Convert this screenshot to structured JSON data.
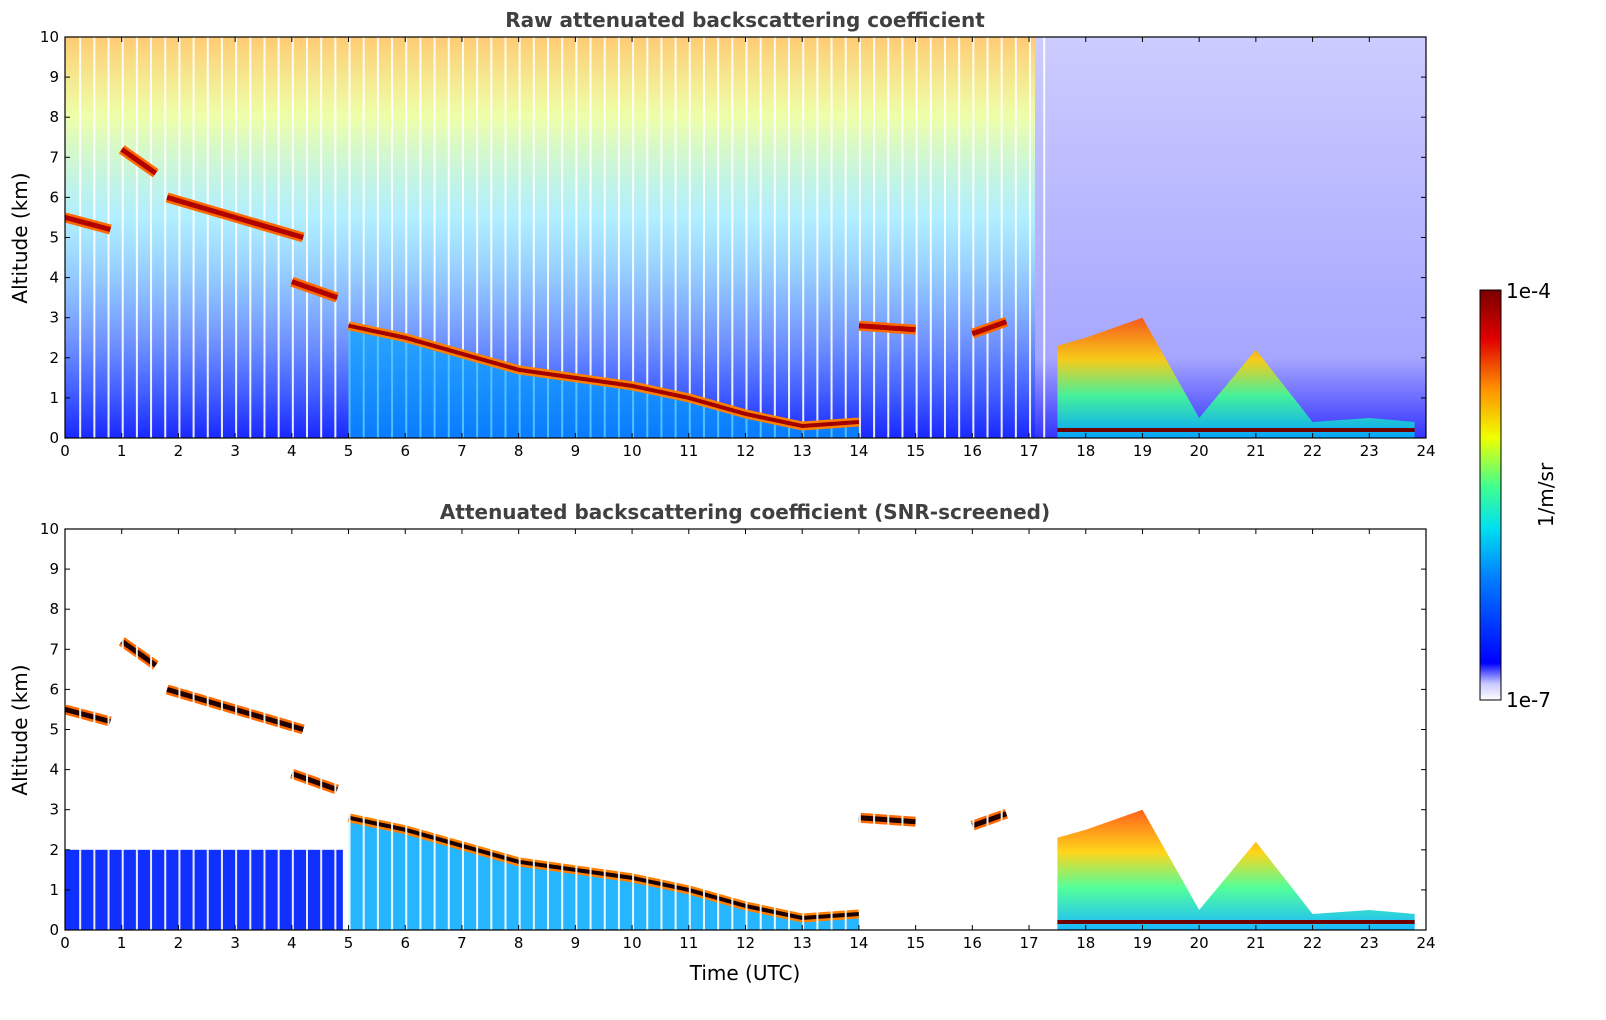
{
  "chart_data": [
    {
      "type": "heatmap",
      "title": "Raw attenuated backscattering coefficient",
      "xlabel": "",
      "ylabel": "Altitude (km)",
      "xlim": [
        0,
        24
      ],
      "ylim": [
        0,
        10
      ],
      "xticks": [
        "0",
        "1",
        "2",
        "3",
        "4",
        "5",
        "6",
        "7",
        "8",
        "9",
        "10",
        "11",
        "12",
        "13",
        "14",
        "15",
        "16",
        "17",
        "18",
        "19",
        "20",
        "21",
        "22",
        "23",
        "24"
      ],
      "yticks": [
        "0",
        "1",
        "2",
        "3",
        "4",
        "5",
        "6",
        "7",
        "8",
        "9",
        "10"
      ],
      "grid": false,
      "cloud_base_trace": {
        "time_utc": [
          5.0,
          6.0,
          7.0,
          8.0,
          9.0,
          10.0,
          11.0,
          12.0,
          13.0,
          14.0
        ],
        "altitude_km": [
          2.8,
          2.5,
          2.1,
          1.7,
          1.5,
          1.3,
          1.0,
          0.6,
          0.3,
          0.4
        ]
      },
      "elevated_layers": [
        {
          "time_utc": [
            0.0,
            0.8
          ],
          "altitude_km": [
            5.5,
            5.2
          ]
        },
        {
          "time_utc": [
            1.0,
            1.6
          ],
          "altitude_km": [
            7.2,
            6.6
          ]
        },
        {
          "time_utc": [
            1.8,
            4.2
          ],
          "altitude_km": [
            6.0,
            5.0
          ]
        },
        {
          "time_utc": [
            4.0,
            4.8
          ],
          "altitude_km": [
            3.9,
            3.5
          ]
        },
        {
          "time_utc": [
            14.0,
            15.0
          ],
          "altitude_km": [
            2.8,
            2.7
          ]
        },
        {
          "time_utc": [
            16.0,
            16.6
          ],
          "altitude_km": [
            2.6,
            2.9
          ]
        }
      ],
      "boundary_layer": {
        "time_utc": [
          17.5,
          18.0,
          19.0,
          20.0,
          21.0,
          22.0,
          23.0,
          23.8
        ],
        "top_km": [
          2.3,
          2.5,
          3.0,
          0.5,
          2.2,
          0.4,
          0.5,
          0.4
        ]
      }
    },
    {
      "type": "heatmap",
      "title": "Attenuated backscattering coefficient (SNR-screened)",
      "xlabel": "Time (UTC)",
      "ylabel": "Altitude (km)",
      "xlim": [
        0,
        24
      ],
      "ylim": [
        0,
        10
      ],
      "xticks": [
        "0",
        "1",
        "2",
        "3",
        "4",
        "5",
        "6",
        "7",
        "8",
        "9",
        "10",
        "11",
        "12",
        "13",
        "14",
        "15",
        "16",
        "17",
        "18",
        "19",
        "20",
        "21",
        "22",
        "23",
        "24"
      ],
      "yticks": [
        "0",
        "1",
        "2",
        "3",
        "4",
        "5",
        "6",
        "7",
        "8",
        "9",
        "10"
      ],
      "grid": false
    }
  ],
  "colorbar": {
    "label": "1/m/sr",
    "max_label": "1e-4",
    "min_label": "1e-7",
    "colormap": [
      "#ffffff",
      "#0000ff",
      "#00bfff",
      "#00ff80",
      "#ffff00",
      "#ff8000",
      "#c00000",
      "#600000"
    ]
  }
}
